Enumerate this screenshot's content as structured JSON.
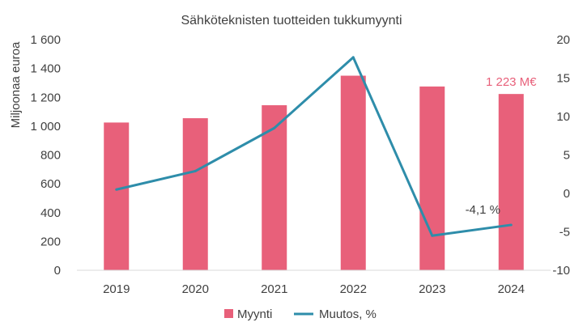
{
  "chart_data": {
    "type": "bar",
    "title": "Sähköteknisten tuotteiden tukkumyynti",
    "categories": [
      "2019",
      "2020",
      "2021",
      "2022",
      "2023",
      "2024"
    ],
    "y_left": {
      "label": "Miljoonaa euroa",
      "range": [
        0,
        1600
      ],
      "ticks": [
        "0",
        "200",
        "400",
        "600",
        "800",
        "1 000",
        "1 200",
        "1 400",
        "1 600"
      ]
    },
    "y_right": {
      "range": [
        -10,
        20
      ],
      "ticks": [
        "-10",
        "-5",
        "0",
        "5",
        "10",
        "15",
        "20"
      ]
    },
    "series": [
      {
        "name": "Myynti",
        "type": "bar",
        "axis": "left",
        "color": "#E8607A",
        "values": [
          1025,
          1055,
          1145,
          1350,
          1275,
          1223
        ]
      },
      {
        "name": "Muutos, %",
        "type": "line",
        "axis": "right",
        "color": "#2E8DAA",
        "values": [
          0.5,
          2.9,
          8.5,
          17.7,
          -5.5,
          -4.1
        ]
      }
    ],
    "annotations": [
      {
        "text": "1 223 M€",
        "series": "Myynti",
        "category": "2024",
        "color": "#E8607A"
      },
      {
        "text": "-4,1 %",
        "series": "Muutos, %",
        "category": "2024",
        "color": "#404040"
      }
    ],
    "grid": false,
    "legend": "bottom"
  }
}
